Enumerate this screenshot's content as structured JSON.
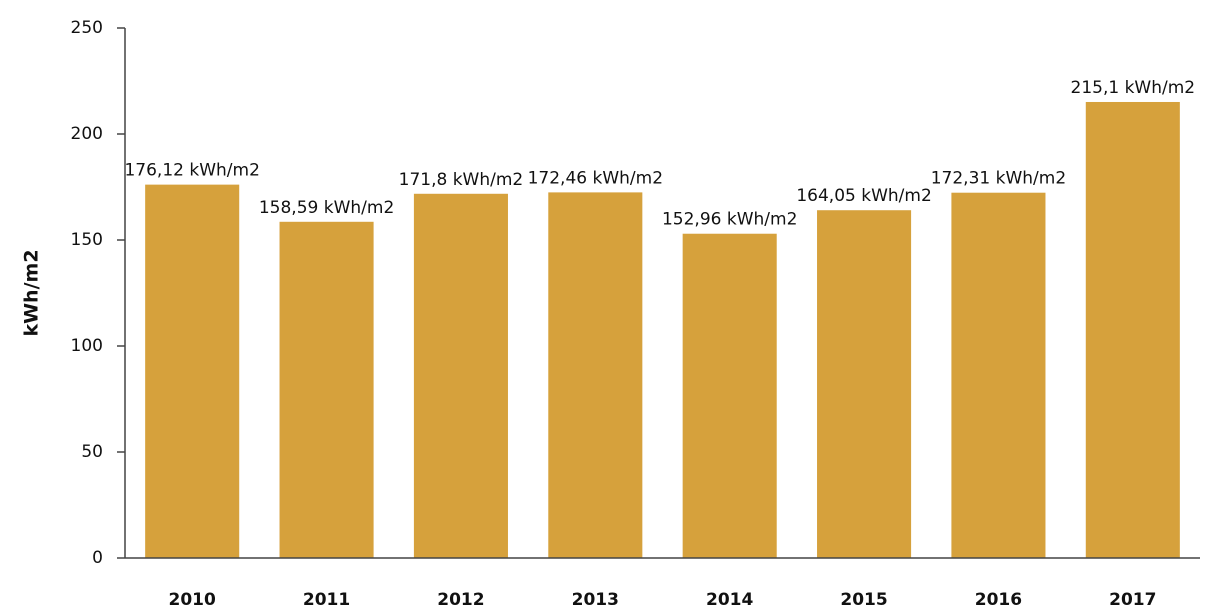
{
  "chart_data": {
    "type": "bar",
    "y_label": "kWh/m2",
    "categories": [
      "2010",
      "2011",
      "2012",
      "2013",
      "2014",
      "2015",
      "2016",
      "2017"
    ],
    "values": [
      176.12,
      158.59,
      171.8,
      172.46,
      152.96,
      164.05,
      172.31,
      215.1
    ],
    "value_labels": [
      "176,12 kWh/m2",
      "158,59 kWh/m2",
      "171,8 kWh/m2",
      "172,46 kWh/m2",
      "152,96 kWh/m2",
      "164,05 kWh/m2",
      "172,31 kWh/m2",
      "215,1 kWh/m2"
    ],
    "color": "#d6a13c",
    "ylim": [
      0,
      250
    ],
    "yticks": [
      0,
      50,
      100,
      150,
      200,
      250
    ],
    "grid": false
  }
}
